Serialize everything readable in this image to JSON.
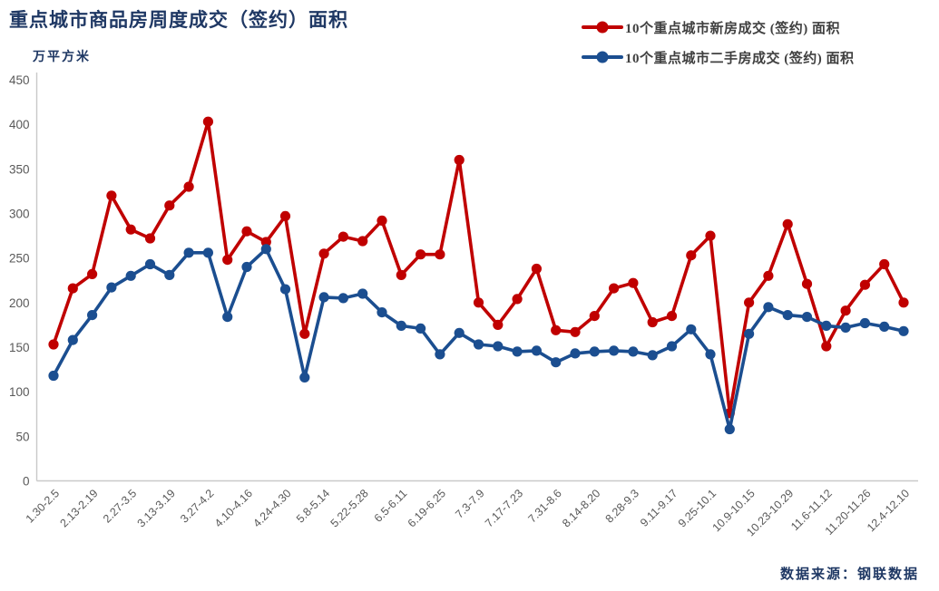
{
  "title": "重点城市商品房周度成交（签约）面积",
  "y_axis_unit": "万平方米",
  "source": "数据来源：钢联数据",
  "legend": [
    {
      "label": "10个重点城市新房成交 (签约) 面积",
      "color": "#C00000"
    },
    {
      "label": "10个重点城市二手房成交 (签约) 面积",
      "color": "#1B4E90"
    }
  ],
  "colors": {
    "new_homes_line": "#C00000",
    "secondhand_line": "#1B4E90",
    "title_text": "#1F3864",
    "axis_text": "#595959",
    "axis_line": "#C9C9C9"
  },
  "chart_data": {
    "type": "line",
    "title": "重点城市商品房周度成交（签约）面积",
    "ylabel": "万平方米",
    "ylim": [
      0,
      450
    ],
    "y_ticks": [
      0,
      50,
      100,
      150,
      200,
      250,
      300,
      350,
      400,
      450
    ],
    "grid": false,
    "legend_position": "top-right",
    "n_points": 45,
    "x_label_every": 2,
    "x_tick_labels": [
      "1.30-2.5",
      "2.13-2.19",
      "2.27-3.5",
      "3.13-3.19",
      "3.27-4.2",
      "4.10-4.16",
      "4.24-4.30",
      "5.8-5.14",
      "5.22-5.28",
      "6.5-6.11",
      "6.19-6.25",
      "7.3-7.9",
      "7.17-7.23",
      "7.31-8.6",
      "8.14-8.20",
      "8.28-9.3",
      "9.11-9.17",
      "9.25-10.1",
      "10.9-10.15",
      "10.23-10.29",
      "11.6-11.12",
      "11.20-11.26",
      "12.4-12.10"
    ],
    "series": [
      {
        "name": "10个重点城市新房成交 (签约) 面积",
        "color": "#C00000",
        "values": [
          153,
          216,
          232,
          320,
          282,
          272,
          309,
          330,
          403,
          248,
          280,
          268,
          297,
          165,
          255,
          274,
          269,
          292,
          231,
          254,
          254,
          360,
          200,
          175,
          204,
          238,
          169,
          167,
          185,
          216,
          222,
          178,
          185,
          253,
          275,
          76,
          200,
          230,
          288,
          221,
          151,
          191,
          220,
          243,
          200
        ]
      },
      {
        "name": "10个重点城市二手房成交 (签约) 面积",
        "color": "#1B4E90",
        "values": [
          118,
          158,
          186,
          217,
          230,
          243,
          231,
          256,
          256,
          184,
          240,
          260,
          215,
          116,
          206,
          205,
          210,
          189,
          174,
          171,
          142,
          166,
          153,
          151,
          145,
          146,
          133,
          143,
          145,
          146,
          145,
          141,
          151,
          170,
          142,
          58,
          165,
          195,
          186,
          184,
          174,
          172,
          177,
          173,
          168
        ]
      }
    ]
  }
}
